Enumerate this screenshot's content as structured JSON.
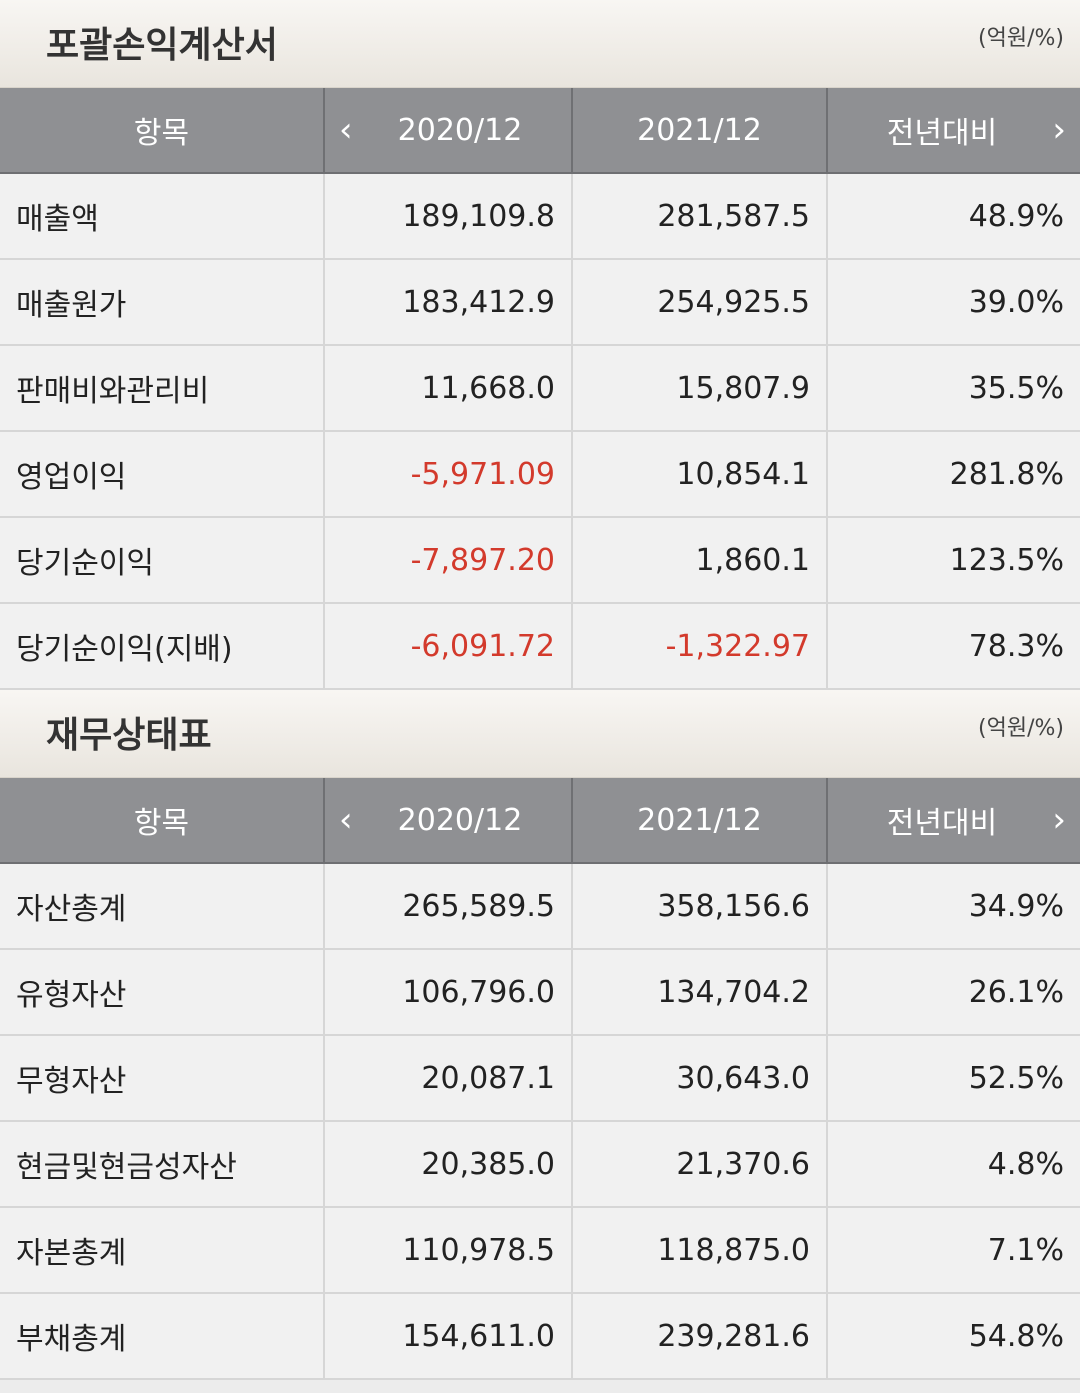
{
  "sections": [
    {
      "title": "포괄손익계산서",
      "unit": "(억원/%)",
      "headers": [
        "항목",
        "2020/12",
        "2021/12",
        "전년대비"
      ],
      "rows": [
        {
          "name": "매출액",
          "y2020": "189,109.8",
          "y2021": "281,587.5",
          "yoy": "48.9%"
        },
        {
          "name": "매출원가",
          "y2020": "183,412.9",
          "y2021": "254,925.5",
          "yoy": "39.0%"
        },
        {
          "name": "판매비와관리비",
          "y2020": "11,668.0",
          "y2021": "15,807.9",
          "yoy": "35.5%"
        },
        {
          "name": "영업이익",
          "y2020": "-5,971.09",
          "y2021": "10,854.1",
          "yoy": "281.8%"
        },
        {
          "name": "당기순이익",
          "y2020": "-7,897.20",
          "y2021": "1,860.1",
          "yoy": "123.5%"
        },
        {
          "name": "당기순이익(지배)",
          "y2020": "-6,091.72",
          "y2021": "-1,322.97",
          "yoy": "78.3%"
        }
      ]
    },
    {
      "title": "재무상태표",
      "unit": "(억원/%)",
      "headers": [
        "항목",
        "2020/12",
        "2021/12",
        "전년대비"
      ],
      "rows": [
        {
          "name": "자산총계",
          "y2020": "265,589.5",
          "y2021": "358,156.6",
          "yoy": "34.9%"
        },
        {
          "name": "유형자산",
          "y2020": "106,796.0",
          "y2021": "134,704.2",
          "yoy": "26.1%"
        },
        {
          "name": "무형자산",
          "y2020": "20,087.1",
          "y2021": "30,643.0",
          "yoy": "52.5%"
        },
        {
          "name": "현금및현금성자산",
          "y2020": "20,385.0",
          "y2021": "21,370.6",
          "yoy": "4.8%"
        },
        {
          "name": "자본총계",
          "y2020": "110,978.5",
          "y2021": "118,875.0",
          "yoy": "7.1%"
        },
        {
          "name": "부채총계",
          "y2020": "154,611.0",
          "y2021": "239,281.6",
          "yoy": "54.8%"
        }
      ]
    }
  ],
  "icons": {
    "prev": "chevron-left-icon",
    "next": "chevron-right-icon"
  },
  "colors": {
    "negative": "#d33a2c",
    "header_bg": "#8f9093"
  }
}
